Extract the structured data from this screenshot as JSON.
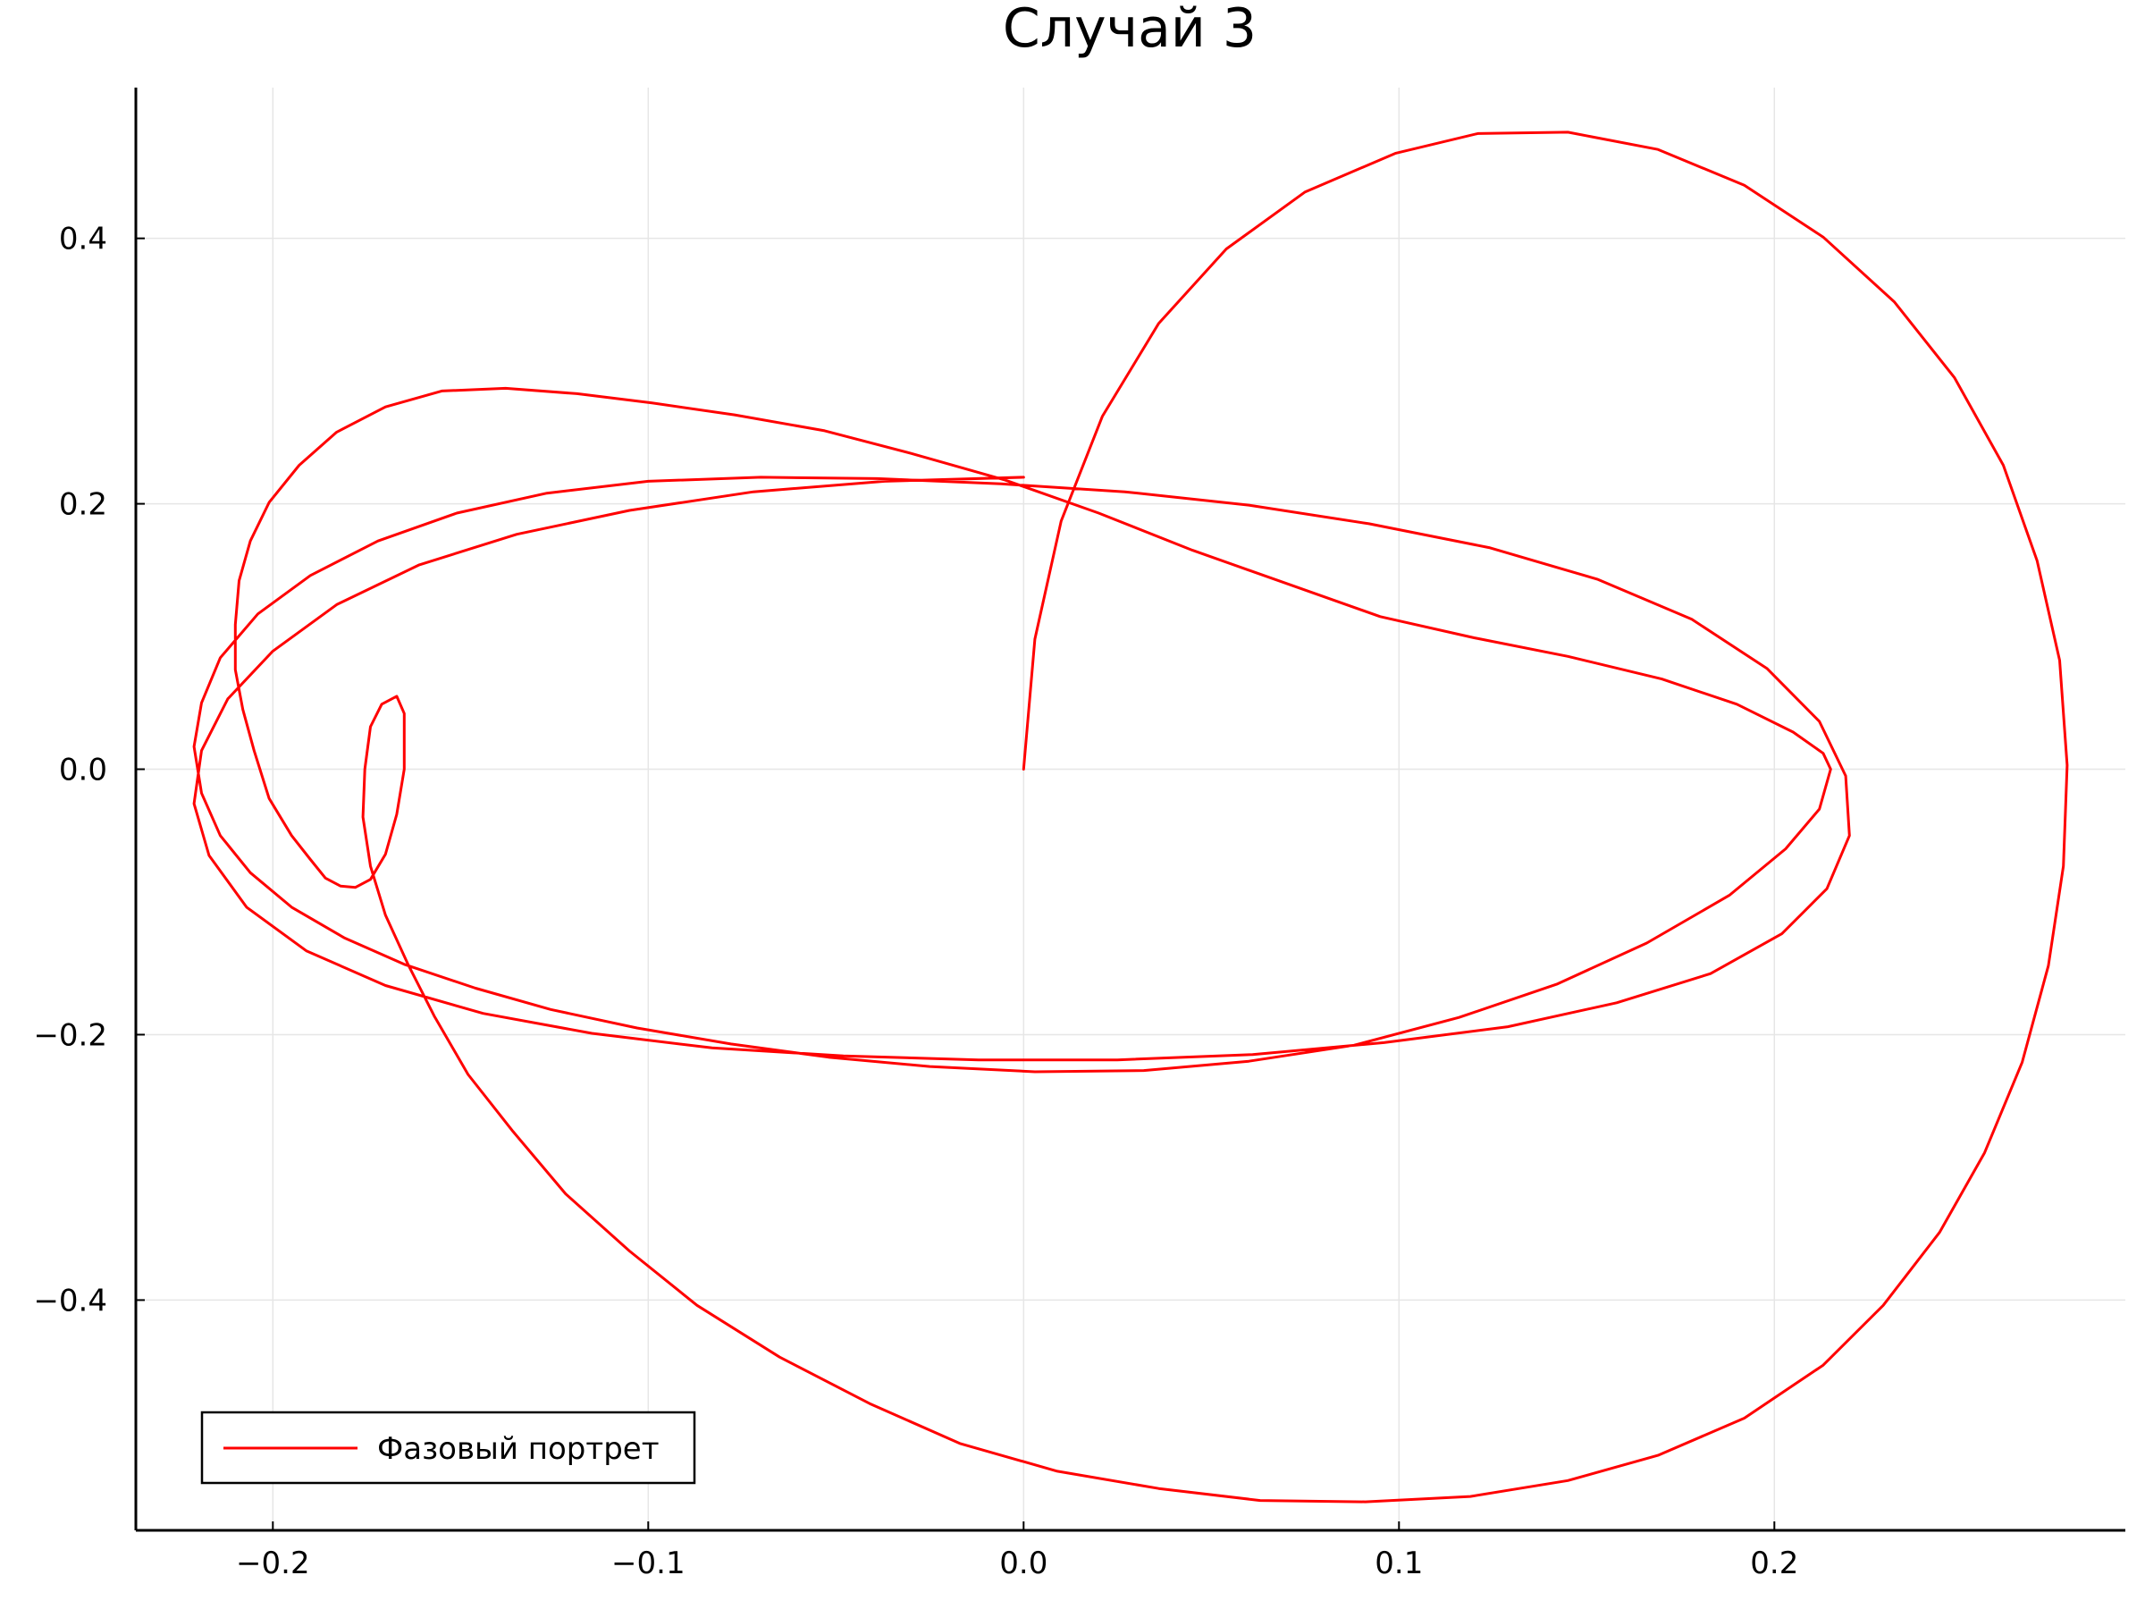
{
  "chart_data": {
    "type": "line",
    "title": "Случай 3",
    "xlabel": "",
    "ylabel": "",
    "xlim": [
      -0.2365,
      0.2935
    ],
    "ylim": [
      -0.5735,
      0.5136
    ],
    "xticks": [
      -0.2,
      -0.1,
      0.0,
      0.1,
      0.2
    ],
    "xtick_labels": [
      "−0.2",
      "−0.1",
      "0.0",
      "0.1",
      "0.2"
    ],
    "yticks": [
      -0.4,
      -0.2,
      0.0,
      0.2,
      0.4
    ],
    "ytick_labels": [
      "−0.4",
      "−0.2",
      "0.0",
      "0.2",
      "0.4"
    ],
    "grid": true,
    "legend_position": "bottom-left",
    "series": [
      {
        "name": "Фазовый портрет",
        "color": "#ff0000",
        "x": [
          0.0,
          0.003,
          0.01,
          0.021,
          0.036,
          0.054,
          0.075,
          0.099,
          0.121,
          0.145,
          0.169,
          0.192,
          0.213,
          0.232,
          0.248,
          0.261,
          0.27,
          0.276,
          0.278,
          0.277,
          0.273,
          0.266,
          0.256,
          0.244,
          0.229,
          0.213,
          0.192,
          0.169,
          0.145,
          0.119,
          0.091,
          0.063,
          0.036,
          0.009,
          -0.017,
          -0.041,
          -0.065,
          -0.087,
          -0.105,
          -0.122,
          -0.136,
          -0.148,
          -0.157,
          -0.164,
          -0.17,
          -0.174,
          -0.176,
          -0.1755,
          -0.174,
          -0.171,
          -0.167,
          -0.165,
          -0.165,
          -0.167,
          -0.17,
          -0.174,
          -0.178,
          -0.182,
          -0.186,
          -0.19,
          -0.195,
          -0.201,
          -0.205,
          -0.208,
          -0.21,
          -0.21,
          -0.209,
          -0.206,
          -0.201,
          -0.193,
          -0.183,
          -0.17,
          -0.155,
          -0.138,
          -0.119,
          -0.099,
          -0.077,
          -0.053,
          -0.03,
          -0.005,
          0.02,
          0.045,
          0.07,
          0.095,
          0.12,
          0.145,
          0.17,
          0.19,
          0.205,
          0.213,
          0.215,
          0.212,
          0.203,
          0.188,
          0.166,
          0.142,
          0.116,
          0.088,
          0.06,
          0.032,
          0.003,
          -0.025,
          -0.052,
          -0.078,
          -0.103,
          -0.126,
          -0.146,
          -0.165,
          -0.181,
          -0.195,
          -0.206,
          -0.214,
          -0.219,
          -0.221,
          -0.219,
          -0.214,
          -0.204,
          -0.19,
          -0.172,
          -0.151,
          -0.127,
          -0.1,
          -0.07,
          -0.039,
          -0.006,
          0.027,
          0.06,
          0.092,
          0.124,
          0.153,
          0.178,
          0.198,
          0.212,
          0.219,
          0.22,
          0.214,
          0.202,
          0.183,
          0.158,
          0.129,
          0.096,
          0.061,
          0.025,
          -0.012,
          -0.048,
          -0.083,
          -0.115,
          -0.144,
          -0.17,
          -0.191,
          -0.207,
          -0.217,
          -0.221,
          -0.219,
          -0.212,
          -0.2,
          -0.183,
          -0.161,
          -0.135,
          -0.105,
          -0.072,
          -0.037,
          0.0
        ],
        "y": [
          0.0,
          0.098,
          0.187,
          0.266,
          0.336,
          0.392,
          0.435,
          0.464,
          0.479,
          0.48,
          0.467,
          0.44,
          0.401,
          0.352,
          0.295,
          0.229,
          0.157,
          0.082,
          0.003,
          -0.073,
          -0.148,
          -0.221,
          -0.289,
          -0.349,
          -0.404,
          -0.449,
          -0.489,
          -0.517,
          -0.536,
          -0.548,
          -0.552,
          -0.551,
          -0.542,
          -0.529,
          -0.508,
          -0.478,
          -0.443,
          -0.404,
          -0.363,
          -0.32,
          -0.273,
          -0.23,
          -0.186,
          -0.147,
          -0.11,
          -0.073,
          -0.036,
          0.0,
          0.032,
          0.049,
          0.055,
          0.042,
          0.0,
          -0.034,
          -0.064,
          -0.083,
          -0.089,
          -0.088,
          -0.082,
          -0.068,
          -0.05,
          -0.022,
          0.014,
          0.045,
          0.075,
          0.109,
          0.142,
          0.172,
          0.201,
          0.229,
          0.254,
          0.273,
          0.285,
          0.287,
          0.283,
          0.276,
          0.267,
          0.255,
          0.238,
          0.218,
          0.193,
          0.165,
          0.14,
          0.115,
          0.099,
          0.085,
          0.068,
          0.049,
          0.028,
          0.012,
          0.0,
          -0.03,
          -0.06,
          -0.095,
          -0.131,
          -0.162,
          -0.187,
          -0.208,
          -0.22,
          -0.227,
          -0.228,
          -0.224,
          -0.217,
          -0.207,
          -0.195,
          -0.181,
          -0.165,
          -0.147,
          -0.127,
          -0.104,
          -0.078,
          -0.05,
          -0.018,
          0.017,
          0.05,
          0.084,
          0.117,
          0.146,
          0.172,
          0.193,
          0.208,
          0.217,
          0.22,
          0.219,
          0.215,
          0.209,
          0.199,
          0.185,
          0.167,
          0.143,
          0.113,
          0.076,
          0.036,
          -0.005,
          -0.05,
          -0.09,
          -0.124,
          -0.154,
          -0.176,
          -0.194,
          -0.206,
          -0.215,
          -0.219,
          -0.219,
          -0.216,
          -0.21,
          -0.199,
          -0.184,
          -0.163,
          -0.137,
          -0.104,
          -0.065,
          -0.026,
          0.014,
          0.053,
          0.089,
          0.124,
          0.154,
          0.177,
          0.195,
          0.209,
          0.217,
          0.22
        ]
      }
    ]
  }
}
